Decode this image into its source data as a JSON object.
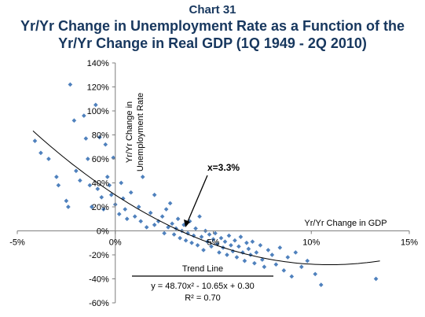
{
  "header": {
    "chart_number": "Chart 31",
    "title_line1": "Yr/Yr Change in Unemployment Rate as a Function of the",
    "title_line2": "Yr/Yr Change in Real GDP (1Q 1949 - 2Q 2010)"
  },
  "colors": {
    "title": "#17375e",
    "points": "#4f81bd",
    "axis": "#7f7f7f",
    "trend": "#000000"
  },
  "chart_data": {
    "type": "scatter",
    "title": "Yr/Yr Change in Unemployment Rate as a Function of the Yr/Yr Change in Real GDP (1Q 1949 - 2Q 2010)",
    "xlabel": "Yr/Yr Change in GDP",
    "ylabel": "Yr/Yr Change in Unemployment Rate",
    "xlim": [
      -5,
      15
    ],
    "ylim": [
      -60,
      140
    ],
    "x_ticks": [
      -5,
      0,
      5,
      10,
      15
    ],
    "x_tick_labels": [
      "-5%",
      "0%",
      "5%",
      "10%",
      "15%"
    ],
    "y_ticks": [
      -60,
      -40,
      -20,
      0,
      20,
      40,
      60,
      80,
      100,
      120,
      140
    ],
    "y_tick_labels": [
      "-60%",
      "-40%",
      "-20%",
      "0%",
      "20%",
      "40%",
      "60%",
      "80%",
      "100%",
      "120%",
      "140%"
    ],
    "grid": false,
    "legend": "none",
    "trendline": {
      "type": "polynomial",
      "coefficients": {
        "a": 48.7,
        "b": -10.65,
        "c": 0.3
      },
      "label": "Trend Line",
      "equation": "y = 48.70x² - 10.65x + 0.30",
      "r2_label": "R² = 0.70",
      "x_range": [
        -4.2,
        13.5
      ]
    },
    "annotation": {
      "text": "x=3.3%",
      "x": 3.3,
      "y": 0
    },
    "series": [
      {
        "points": [
          [
            -4.1,
            75
          ],
          [
            -3.8,
            65
          ],
          [
            -3.4,
            60
          ],
          [
            -3.0,
            45
          ],
          [
            -2.9,
            38
          ],
          [
            -2.5,
            25
          ],
          [
            -2.4,
            20
          ],
          [
            -2.3,
            122
          ],
          [
            -2.1,
            92
          ],
          [
            -2.0,
            50
          ],
          [
            -1.8,
            42
          ],
          [
            -1.6,
            96
          ],
          [
            -1.5,
            77
          ],
          [
            -1.4,
            60
          ],
          [
            -1.3,
            38
          ],
          [
            -1.2,
            20
          ],
          [
            -1.0,
            105
          ],
          [
            -0.9,
            35
          ],
          [
            -0.8,
            78
          ],
          [
            -0.7,
            28
          ],
          [
            -0.6,
            18
          ],
          [
            -0.5,
            72
          ],
          [
            -0.4,
            45
          ],
          [
            -0.3,
            38
          ],
          [
            -0.2,
            30
          ],
          [
            -0.1,
            61
          ],
          [
            0.0,
            22
          ],
          [
            0.2,
            14
          ],
          [
            0.3,
            40
          ],
          [
            0.4,
            27
          ],
          [
            0.5,
            18
          ],
          [
            0.6,
            10
          ],
          [
            0.8,
            32
          ],
          [
            1.0,
            12
          ],
          [
            1.2,
            20
          ],
          [
            1.3,
            8
          ],
          [
            1.4,
            45
          ],
          [
            1.6,
            3
          ],
          [
            1.8,
            15
          ],
          [
            2.0,
            30
          ],
          [
            2.0,
            5
          ],
          [
            2.2,
            8
          ],
          [
            2.4,
            12
          ],
          [
            2.5,
            -2
          ],
          [
            2.6,
            18
          ],
          [
            2.7,
            3
          ],
          [
            2.8,
            23
          ],
          [
            2.9,
            6
          ],
          [
            3.0,
            -3
          ],
          [
            3.1,
            2
          ],
          [
            3.2,
            10
          ],
          [
            3.3,
            -6
          ],
          [
            3.4,
            0
          ],
          [
            3.5,
            5
          ],
          [
            3.6,
            -8
          ],
          [
            3.7,
            -2
          ],
          [
            3.8,
            8
          ],
          [
            3.9,
            -10
          ],
          [
            4.0,
            -4
          ],
          [
            4.1,
            2
          ],
          [
            4.2,
            -12
          ],
          [
            4.3,
            12
          ],
          [
            4.4,
            -5
          ],
          [
            4.5,
            -16
          ],
          [
            4.6,
            0
          ],
          [
            4.7,
            -9
          ],
          [
            4.8,
            -3
          ],
          [
            4.9,
            -13
          ],
          [
            5.0,
            -7
          ],
          [
            5.1,
            -2
          ],
          [
            5.2,
            -11
          ],
          [
            5.3,
            -18
          ],
          [
            5.4,
            -6
          ],
          [
            5.5,
            -14
          ],
          [
            5.6,
            -9
          ],
          [
            5.7,
            -20
          ],
          [
            5.8,
            -4
          ],
          [
            5.9,
            -12
          ],
          [
            6.0,
            -17
          ],
          [
            6.1,
            -8
          ],
          [
            6.2,
            -22
          ],
          [
            6.3,
            -13
          ],
          [
            6.4,
            -5
          ],
          [
            6.5,
            -18
          ],
          [
            6.6,
            -25
          ],
          [
            6.7,
            -10
          ],
          [
            6.8,
            -15
          ],
          [
            6.9,
            -20
          ],
          [
            7.0,
            -9
          ],
          [
            7.1,
            -27
          ],
          [
            7.2,
            -18
          ],
          [
            7.4,
            -12
          ],
          [
            7.5,
            -24
          ],
          [
            7.6,
            -30
          ],
          [
            7.8,
            -16
          ],
          [
            8.0,
            -20
          ],
          [
            8.2,
            -28
          ],
          [
            8.4,
            -14
          ],
          [
            8.6,
            -33
          ],
          [
            8.8,
            -22
          ],
          [
            9.0,
            -38
          ],
          [
            9.2,
            -18
          ],
          [
            9.5,
            -30
          ],
          [
            9.8,
            -25
          ],
          [
            10.2,
            -36
          ],
          [
            10.5,
            -45
          ],
          [
            13.3,
            -40
          ]
        ]
      }
    ]
  }
}
